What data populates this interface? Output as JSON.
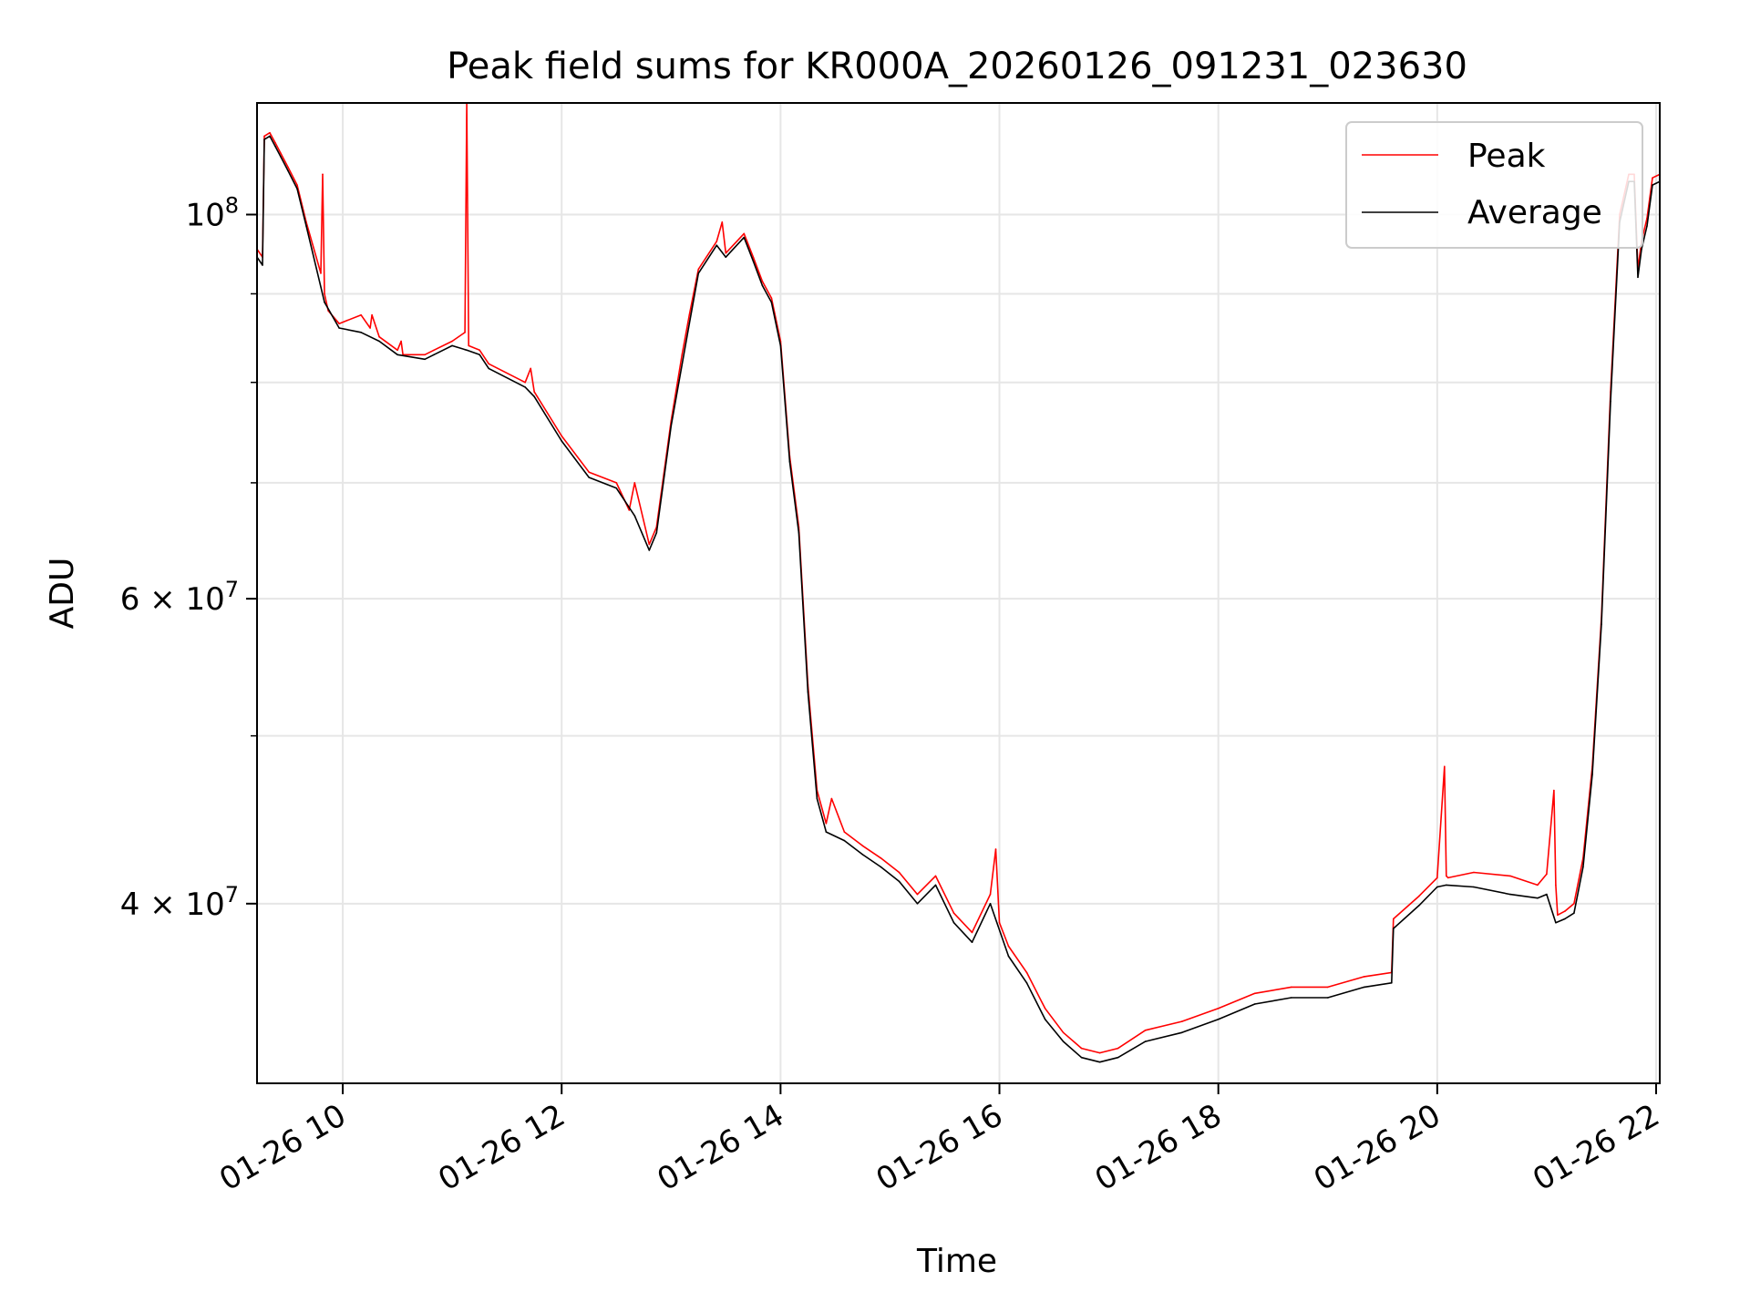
{
  "chart_data": {
    "type": "line",
    "title": "Peak field sums for KR000A_20260126_091231_023630",
    "xlabel": "Time",
    "ylabel": "ADU",
    "y_scale": "log",
    "ylim": [
      31500000,
      116000000
    ],
    "xlim": [
      "2026-01-26 09:13",
      "2026-01-26 22:02"
    ],
    "grid": true,
    "legend_position": "top-right",
    "colors": {
      "Peak": "#ff0000",
      "Average": "#000000"
    },
    "x_ticks": [
      {
        "label": "01-26 10",
        "t": "2026-01-26 10:00"
      },
      {
        "label": "01-26 12",
        "t": "2026-01-26 12:00"
      },
      {
        "label": "01-26 14",
        "t": "2026-01-26 14:00"
      },
      {
        "label": "01-26 16",
        "t": "2026-01-26 16:00"
      },
      {
        "label": "01-26 18",
        "t": "2026-01-26 18:00"
      },
      {
        "label": "01-26 20",
        "t": "2026-01-26 20:00"
      },
      {
        "label": "01-26 22",
        "t": "2026-01-26 22:00"
      }
    ],
    "y_ticks": [
      {
        "label": "10^8",
        "base": "10",
        "exp": "8",
        "value": 100000000
      },
      {
        "label": "6×10^7",
        "mant": "6 × 10",
        "exp": "7",
        "value": 60000000
      },
      {
        "label": "4×10^7",
        "mant": "4 × 10",
        "exp": "7",
        "value": 40000000
      }
    ],
    "y_minor_ticks": [
      30000000,
      50000000,
      70000000,
      80000000,
      90000000
    ],
    "series": [
      {
        "name": "Peak",
        "x": [
          "2026-01-26 09:13",
          "2026-01-26 09:16",
          "2026-01-26 09:17",
          "2026-01-26 09:20",
          "2026-01-26 09:23",
          "2026-01-26 09:26",
          "2026-01-26 09:30",
          "2026-01-26 09:35",
          "2026-01-26 09:40",
          "2026-01-26 09:48",
          "2026-01-26 09:49",
          "2026-01-26 09:50",
          "2026-01-26 09:52",
          "2026-01-26 09:58",
          "2026-01-26 10:10",
          "2026-01-26 10:15",
          "2026-01-26 10:16",
          "2026-01-26 10:20",
          "2026-01-26 10:30",
          "2026-01-26 10:32",
          "2026-01-26 10:33",
          "2026-01-26 10:45",
          "2026-01-26 10:50",
          "2026-01-26 11:00",
          "2026-01-26 11:07",
          "2026-01-26 11:08",
          "2026-01-26 11:09",
          "2026-01-26 11:15",
          "2026-01-26 11:20",
          "2026-01-26 11:40",
          "2026-01-26 11:43",
          "2026-01-26 11:45",
          "2026-01-26 12:00",
          "2026-01-26 12:15",
          "2026-01-26 12:30",
          "2026-01-26 12:37",
          "2026-01-26 12:40",
          "2026-01-26 12:48",
          "2026-01-26 12:52",
          "2026-01-26 13:00",
          "2026-01-26 13:06",
          "2026-01-26 13:10",
          "2026-01-26 13:15",
          "2026-01-26 13:25",
          "2026-01-26 13:28",
          "2026-01-26 13:30",
          "2026-01-26 13:40",
          "2026-01-26 13:45",
          "2026-01-26 13:50",
          "2026-01-26 13:55",
          "2026-01-26 14:00",
          "2026-01-26 14:05",
          "2026-01-26 14:10",
          "2026-01-26 14:15",
          "2026-01-26 14:20",
          "2026-01-26 14:25",
          "2026-01-26 14:28",
          "2026-01-26 14:35",
          "2026-01-26 14:45",
          "2026-01-26 14:55",
          "2026-01-26 15:05",
          "2026-01-26 15:15",
          "2026-01-26 15:25",
          "2026-01-26 15:35",
          "2026-01-26 15:45",
          "2026-01-26 15:55",
          "2026-01-26 15:58",
          "2026-01-26 16:00",
          "2026-01-26 16:05",
          "2026-01-26 16:15",
          "2026-01-26 16:25",
          "2026-01-26 16:35",
          "2026-01-26 16:45",
          "2026-01-26 16:55",
          "2026-01-26 17:05",
          "2026-01-26 17:20",
          "2026-01-26 17:40",
          "2026-01-26 18:00",
          "2026-01-26 18:20",
          "2026-01-26 18:40",
          "2026-01-26 19:00",
          "2026-01-26 19:20",
          "2026-01-26 19:35",
          "2026-01-26 19:36",
          "2026-01-26 19:50",
          "2026-01-26 20:00",
          "2026-01-26 20:04",
          "2026-01-26 20:05",
          "2026-01-26 20:06",
          "2026-01-26 20:20",
          "2026-01-26 20:40",
          "2026-01-26 20:55",
          "2026-01-26 21:00",
          "2026-01-26 21:04",
          "2026-01-26 21:05",
          "2026-01-26 21:06",
          "2026-01-26 21:10",
          "2026-01-26 21:15",
          "2026-01-26 21:20",
          "2026-01-26 21:25",
          "2026-01-26 21:30",
          "2026-01-26 21:35",
          "2026-01-26 21:40",
          "2026-01-26 21:45",
          "2026-01-26 21:48",
          "2026-01-26 21:50",
          "2026-01-26 21:52",
          "2026-01-26 21:55",
          "2026-01-26 21:58",
          "2026-01-26 22:02"
        ],
        "y": [
          95500000,
          94500000,
          111000000,
          111500000,
          110000000,
          108500000,
          106500000,
          104000000,
          99000000,
          92500000,
          105500000,
          90000000,
          88000000,
          86500000,
          87500000,
          86000000,
          87500000,
          85000000,
          83500000,
          84500000,
          83000000,
          83000000,
          83500000,
          84500000,
          85500000,
          116000000,
          84000000,
          83500000,
          82000000,
          80000000,
          81500000,
          79000000,
          74500000,
          71000000,
          70000000,
          67500000,
          70000000,
          64500000,
          66000000,
          76000000,
          83000000,
          87500000,
          93000000,
          96500000,
          99000000,
          95000000,
          97500000,
          94500000,
          91500000,
          89500000,
          84500000,
          72500000,
          66000000,
          53500000,
          46500000,
          44500000,
          46000000,
          44000000,
          43200000,
          42500000,
          41700000,
          40500000,
          41500000,
          39500000,
          38500000,
          40500000,
          43000000,
          39000000,
          37800000,
          36500000,
          34800000,
          33700000,
          33000000,
          32800000,
          33000000,
          33800000,
          34200000,
          34800000,
          35500000,
          35800000,
          35800000,
          36300000,
          36500000,
          39200000,
          40400000,
          41400000,
          48000000,
          41500000,
          41400000,
          41700000,
          41500000,
          41000000,
          41600000,
          46500000,
          41000000,
          39400000,
          39600000,
          40000000,
          42500000,
          48000000,
          58500000,
          79000000,
          100000000,
          105500000,
          105500000,
          93000000,
          96500000,
          99500000,
          105000000,
          105500000
        ]
      },
      {
        "name": "Average",
        "x": [
          "2026-01-26 09:13",
          "2026-01-26 09:16",
          "2026-01-26 09:17",
          "2026-01-26 09:20",
          "2026-01-26 09:23",
          "2026-01-26 09:26",
          "2026-01-26 09:30",
          "2026-01-26 09:35",
          "2026-01-26 09:40",
          "2026-01-26 09:50",
          "2026-01-26 09:58",
          "2026-01-26 10:10",
          "2026-01-26 10:20",
          "2026-01-26 10:30",
          "2026-01-26 10:45",
          "2026-01-26 10:50",
          "2026-01-26 11:00",
          "2026-01-26 11:08",
          "2026-01-26 11:15",
          "2026-01-26 11:20",
          "2026-01-26 11:40",
          "2026-01-26 11:45",
          "2026-01-26 12:00",
          "2026-01-26 12:15",
          "2026-01-26 12:30",
          "2026-01-26 12:40",
          "2026-01-26 12:48",
          "2026-01-26 12:52",
          "2026-01-26 13:00",
          "2026-01-26 13:10",
          "2026-01-26 13:15",
          "2026-01-26 13:25",
          "2026-01-26 13:30",
          "2026-01-26 13:40",
          "2026-01-26 13:45",
          "2026-01-26 13:50",
          "2026-01-26 13:55",
          "2026-01-26 14:00",
          "2026-01-26 14:05",
          "2026-01-26 14:10",
          "2026-01-26 14:15",
          "2026-01-26 14:20",
          "2026-01-26 14:25",
          "2026-01-26 14:35",
          "2026-01-26 14:45",
          "2026-01-26 14:55",
          "2026-01-26 15:05",
          "2026-01-26 15:15",
          "2026-01-26 15:25",
          "2026-01-26 15:35",
          "2026-01-26 15:45",
          "2026-01-26 15:55",
          "2026-01-26 16:05",
          "2026-01-26 16:15",
          "2026-01-26 16:25",
          "2026-01-26 16:35",
          "2026-01-26 16:45",
          "2026-01-26 16:55",
          "2026-01-26 17:05",
          "2026-01-26 17:20",
          "2026-01-26 17:40",
          "2026-01-26 18:00",
          "2026-01-26 18:20",
          "2026-01-26 18:40",
          "2026-01-26 19:00",
          "2026-01-26 19:20",
          "2026-01-26 19:35",
          "2026-01-26 19:36",
          "2026-01-26 19:50",
          "2026-01-26 20:00",
          "2026-01-26 20:05",
          "2026-01-26 20:20",
          "2026-01-26 20:40",
          "2026-01-26 20:55",
          "2026-01-26 21:00",
          "2026-01-26 21:05",
          "2026-01-26 21:10",
          "2026-01-26 21:15",
          "2026-01-26 21:20",
          "2026-01-26 21:25",
          "2026-01-26 21:30",
          "2026-01-26 21:35",
          "2026-01-26 21:40",
          "2026-01-26 21:45",
          "2026-01-26 21:48",
          "2026-01-26 21:50",
          "2026-01-26 21:52",
          "2026-01-26 21:55",
          "2026-01-26 21:58",
          "2026-01-26 22:02"
        ],
        "y": [
          94500000,
          93500000,
          110500000,
          111000000,
          109500000,
          108000000,
          106000000,
          103500000,
          98500000,
          89000000,
          86000000,
          85500000,
          84500000,
          83000000,
          82500000,
          83000000,
          84000000,
          83500000,
          83000000,
          81500000,
          79500000,
          78500000,
          74000000,
          70500000,
          69500000,
          67000000,
          64000000,
          65500000,
          75500000,
          86500000,
          92500000,
          96000000,
          94500000,
          97000000,
          94000000,
          91000000,
          89000000,
          84000000,
          72000000,
          65500000,
          53000000,
          46000000,
          44000000,
          43500000,
          42700000,
          42000000,
          41200000,
          40000000,
          41000000,
          39000000,
          38000000,
          40000000,
          37300000,
          36000000,
          34300000,
          33300000,
          32600000,
          32400000,
          32600000,
          33300000,
          33700000,
          34300000,
          35000000,
          35300000,
          35300000,
          35800000,
          36000000,
          38700000,
          39900000,
          40900000,
          41000000,
          40900000,
          40500000,
          40300000,
          40500000,
          39000000,
          39200000,
          39500000,
          42000000,
          47500000,
          58000000,
          78000000,
          99000000,
          104500000,
          104500000,
          92000000,
          95500000,
          98500000,
          104000000,
          104500000
        ]
      }
    ]
  },
  "legend": {
    "items": [
      {
        "label": "Peak",
        "color": "#ff0000"
      },
      {
        "label": "Average",
        "color": "#000000"
      }
    ]
  }
}
